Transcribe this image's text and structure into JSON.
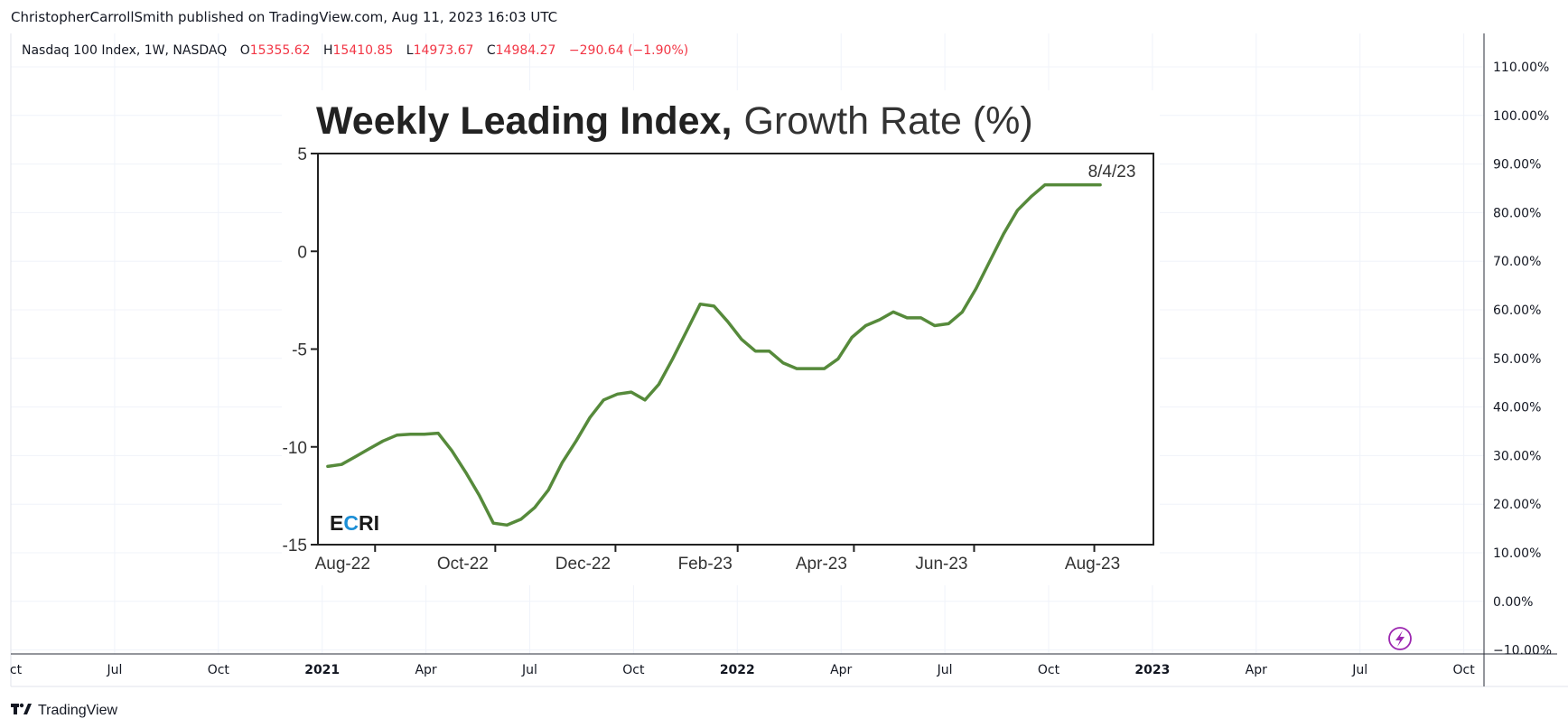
{
  "header": {
    "published_line": "ChristopherCarrollSmith published on TradingView.com, Aug 11, 2023 16:03 UTC"
  },
  "legend": {
    "symbol": "Nasdaq 100 Index, 1W, NASDAQ",
    "o_label": "O",
    "o_value": "15355.62",
    "h_label": "H",
    "h_value": "15410.85",
    "l_label": "L",
    "l_value": "14973.67",
    "c_label": "C",
    "c_value": "14984.27",
    "change": "−290.64 (−1.90%)"
  },
  "price_axis": {
    "labels": [
      "110.00%",
      "100.00%",
      "90.00%",
      "80.00%",
      "70.00%",
      "60.00%",
      "50.00%",
      "40.00%",
      "30.00%",
      "20.00%",
      "10.00%",
      "0.00%",
      "−10.00%"
    ]
  },
  "time_axis": {
    "labels": [
      "Oct",
      "Jul",
      "Oct",
      "2021",
      "Apr",
      "Jul",
      "Oct",
      "2022",
      "Apr",
      "Jul",
      "Oct",
      "2023",
      "Apr",
      "Jul",
      "Oct"
    ],
    "bold": [
      false,
      false,
      false,
      true,
      false,
      false,
      false,
      true,
      false,
      false,
      false,
      true,
      false,
      false,
      false
    ]
  },
  "footer": {
    "brand_name": "TradingView",
    "logo_mark": "17"
  },
  "colors": {
    "line": "#568a3b",
    "grid": "#f0f3fa",
    "axis_border": "#2a2e39",
    "legend_red": "#f23645",
    "ecri_blue": "#1c8fd6",
    "flash_icon": "#9c27b0"
  },
  "icons": {
    "flash": "lightning-bolt-icon",
    "logo": "tradingview-logo-icon"
  },
  "chart_data": {
    "type": "line",
    "title": "Weekly Leading Index, Growth Rate (%)",
    "title_bold_part": "Weekly Leading Index,",
    "title_regular_part": "Growth Rate (%)",
    "xlabel": "",
    "ylabel": "",
    "ylim": [
      -15,
      5
    ],
    "yticks": [
      5,
      0,
      -5,
      -10,
      -15
    ],
    "xtick_labels": [
      "Aug-22",
      "Oct-22",
      "Dec-22",
      "Feb-23",
      "Apr-23",
      "Jun-23",
      "Aug-23"
    ],
    "xtick_dates": [
      "2022-08-01",
      "2022-10-01",
      "2022-12-01",
      "2023-02-01",
      "2023-04-01",
      "2023-06-01",
      "2023-08-01"
    ],
    "annotation": "8/4/23",
    "source_logo": "ECRI",
    "grid": false,
    "series": [
      {
        "x": [
          "2022-07-08",
          "2022-07-15",
          "2022-07-22",
          "2022-07-29",
          "2022-08-05",
          "2022-08-12",
          "2022-08-19",
          "2022-08-26",
          "2022-09-02",
          "2022-09-09",
          "2022-09-16",
          "2022-09-23",
          "2022-09-30",
          "2022-10-07",
          "2022-10-14",
          "2022-10-21",
          "2022-10-28",
          "2022-11-04",
          "2022-11-11",
          "2022-11-18",
          "2022-11-25",
          "2022-12-02",
          "2022-12-09",
          "2022-12-16",
          "2022-12-23",
          "2022-12-30",
          "2023-01-06",
          "2023-01-13",
          "2023-01-20",
          "2023-01-27",
          "2023-02-03",
          "2023-02-10",
          "2023-02-17",
          "2023-02-24",
          "2023-03-03",
          "2023-03-10",
          "2023-03-17",
          "2023-03-24",
          "2023-03-31",
          "2023-04-07",
          "2023-04-14",
          "2023-04-21",
          "2023-04-28",
          "2023-05-05",
          "2023-05-12",
          "2023-05-19",
          "2023-05-26",
          "2023-06-02",
          "2023-06-09",
          "2023-06-16",
          "2023-06-23",
          "2023-06-30",
          "2023-07-07",
          "2023-07-14",
          "2023-07-21",
          "2023-07-28",
          "2023-08-04"
        ],
        "y": [
          -11.0,
          -10.9,
          -10.5,
          -10.1,
          -9.7,
          -9.4,
          -9.35,
          -9.35,
          -9.3,
          -10.2,
          -11.3,
          -12.5,
          -13.9,
          -14.0,
          -13.7,
          -13.1,
          -12.2,
          -10.8,
          -9.7,
          -8.5,
          -7.6,
          -7.3,
          -7.2,
          -7.6,
          -6.8,
          -5.5,
          -4.1,
          -2.7,
          -2.8,
          -3.6,
          -4.5,
          -5.1,
          -5.1,
          -5.7,
          -6.0,
          -6.0,
          -6.0,
          -5.5,
          -4.4,
          -3.8,
          -3.5,
          -3.1,
          -3.4,
          -3.4,
          -3.8,
          -3.7,
          -3.1,
          -1.9,
          -0.5,
          0.9,
          2.1,
          2.8,
          3.4,
          3.4,
          3.4,
          3.4,
          3.4
        ]
      }
    ]
  }
}
